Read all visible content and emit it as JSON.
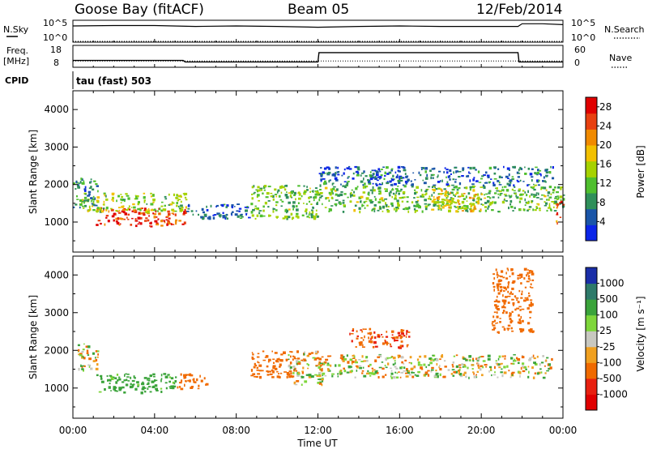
{
  "header": {
    "station": "Goose Bay (fitACF)",
    "beam": "Beam 05",
    "date": "12/Feb/2014"
  },
  "labels": {
    "nsky": "N.Sky",
    "nsearch": "N.Search",
    "freq_top": "Freq.",
    "freq_unit": "[MHz]",
    "nave": "Nave",
    "cpid": "CPID",
    "cpid_value": "tau (fast) 503",
    "nsky_top_tick": "10^5",
    "nsky_bottom_tick": "10^0",
    "nsearch_top_tick": "10^5",
    "nsearch_bottom_tick": "10^0",
    "freq_top_tick": "18",
    "freq_bottom_tick": "8",
    "nave_top_tick": "60",
    "nave_bottom_tick": "0",
    "xlabel": "Time UT",
    "power_ylabel": "Slant Range [km]",
    "velocity_ylabel": "Slant Range [km]",
    "power_cbar_label": "Power [dB]",
    "velocity_cbar_label": "Velocity [m s⁻¹]"
  },
  "axes": {
    "x_ticks": [
      "00:00",
      "04:00",
      "08:00",
      "12:00",
      "16:00",
      "20:00",
      "00:00"
    ],
    "y_ticks": [
      "1000",
      "2000",
      "3000",
      "4000"
    ]
  },
  "chart_data": [
    {
      "type": "line",
      "title": "N.Sky / N.Search",
      "x_range_hours": [
        0,
        24
      ],
      "series": [
        {
          "name": "N.Sky",
          "x": [
            0,
            2,
            4,
            6,
            8,
            10,
            12,
            14,
            16,
            18,
            20,
            21.8,
            22,
            23,
            24
          ],
          "y_log10": [
            3.7,
            3.8,
            3.8,
            3.6,
            3.7,
            3.6,
            3.4,
            3.6,
            3.7,
            3.6,
            3.6,
            3.6,
            4.2,
            4.2,
            4.0
          ]
        },
        {
          "name": "N.Search",
          "x": [
            0,
            24
          ],
          "y_log10": [
            0,
            0
          ]
        }
      ]
    },
    {
      "type": "line",
      "title": "Freq. / Nave",
      "x_range_hours": [
        0,
        24
      ],
      "series": [
        {
          "name": "Freq.",
          "unit": "MHz",
          "x": [
            0,
            5.4,
            5.5,
            12,
            12.05,
            21.8,
            21.85,
            24
          ],
          "y": [
            10.8,
            10.8,
            10,
            10,
            15,
            15,
            10,
            10
          ]
        },
        {
          "name": "Nave",
          "x": [
            0,
            24
          ],
          "y": [
            15,
            15
          ]
        }
      ]
    },
    {
      "type": "heatmap",
      "title": "Power",
      "ylabel": "Slant Range [km]",
      "xlabel": "Time UT",
      "ylim": [
        200,
        4500
      ],
      "colorbar": {
        "label": "Power [dB]",
        "ticks": [
          4,
          8,
          12,
          16,
          20,
          24,
          28
        ],
        "range": [
          0,
          30
        ],
        "colors": [
          "#0b25e8",
          "#1a55a8",
          "#2f8f5a",
          "#4fbf2e",
          "#a6d200",
          "#f2c000",
          "#f08a00",
          "#e84010",
          "#e00000"
        ]
      },
      "regions": [
        {
          "t0": 1.1,
          "t1": 5.5,
          "r0": 900,
          "r1": 1400,
          "value": 26
        },
        {
          "t0": 0.4,
          "t1": 5.6,
          "r0": 1300,
          "r1": 1800,
          "value": 14
        },
        {
          "t0": 0.0,
          "t1": 1.2,
          "r0": 1400,
          "r1": 2200,
          "value": 8
        },
        {
          "t0": 5.5,
          "t1": 8.6,
          "r0": 1100,
          "r1": 1500,
          "value": 6
        },
        {
          "t0": 8.7,
          "t1": 12.0,
          "r0": 1100,
          "r1": 2000,
          "value": 12
        },
        {
          "t0": 12.0,
          "t1": 24.0,
          "r0": 1300,
          "r1": 2000,
          "value": 12
        },
        {
          "t0": 12.0,
          "t1": 23.5,
          "r0": 2000,
          "r1": 2500,
          "value": 6
        },
        {
          "t0": 17.5,
          "t1": 20.0,
          "r0": 1300,
          "r1": 1900,
          "value": 18
        },
        {
          "t0": 23.6,
          "t1": 24.0,
          "r0": 1000,
          "r1": 1600,
          "value": 24
        }
      ]
    },
    {
      "type": "heatmap",
      "title": "Velocity",
      "ylabel": "Slant Range [km]",
      "xlabel": "Time UT",
      "ylim": [
        200,
        4500
      ],
      "colorbar": {
        "label": "Velocity [m s⁻¹]",
        "ticks": [
          1000,
          500,
          100,
          25,
          -25,
          -100,
          -500,
          -1000
        ],
        "colors": [
          "#1a2ea8",
          "#2e7a6a",
          "#3aa33a",
          "#7ed63a",
          "#c8c8c0",
          "#f0a020",
          "#f06a00",
          "#e82010",
          "#e00000"
        ]
      },
      "regions": [
        {
          "t0": 1.1,
          "t1": 5.0,
          "r0": 900,
          "r1": 1400,
          "value": 250
        },
        {
          "t0": 0.2,
          "t1": 1.2,
          "r0": 1500,
          "r1": 2200,
          "value": 0
        },
        {
          "t0": 5.0,
          "t1": 6.5,
          "r0": 1000,
          "r1": 1400,
          "value": -300
        },
        {
          "t0": 8.7,
          "t1": 11.0,
          "r0": 1300,
          "r1": 2000,
          "value": -300
        },
        {
          "t0": 10.5,
          "t1": 12.2,
          "r0": 1100,
          "r1": 2000,
          "value": 0
        },
        {
          "t0": 12.0,
          "t1": 23.5,
          "r0": 1300,
          "r1": 1900,
          "value": 0
        },
        {
          "t0": 13.5,
          "t1": 16.5,
          "r0": 2100,
          "r1": 2600,
          "value": -400
        },
        {
          "t0": 20.5,
          "t1": 22.5,
          "r0": 2500,
          "r1": 4200,
          "value": -300
        }
      ]
    }
  ]
}
